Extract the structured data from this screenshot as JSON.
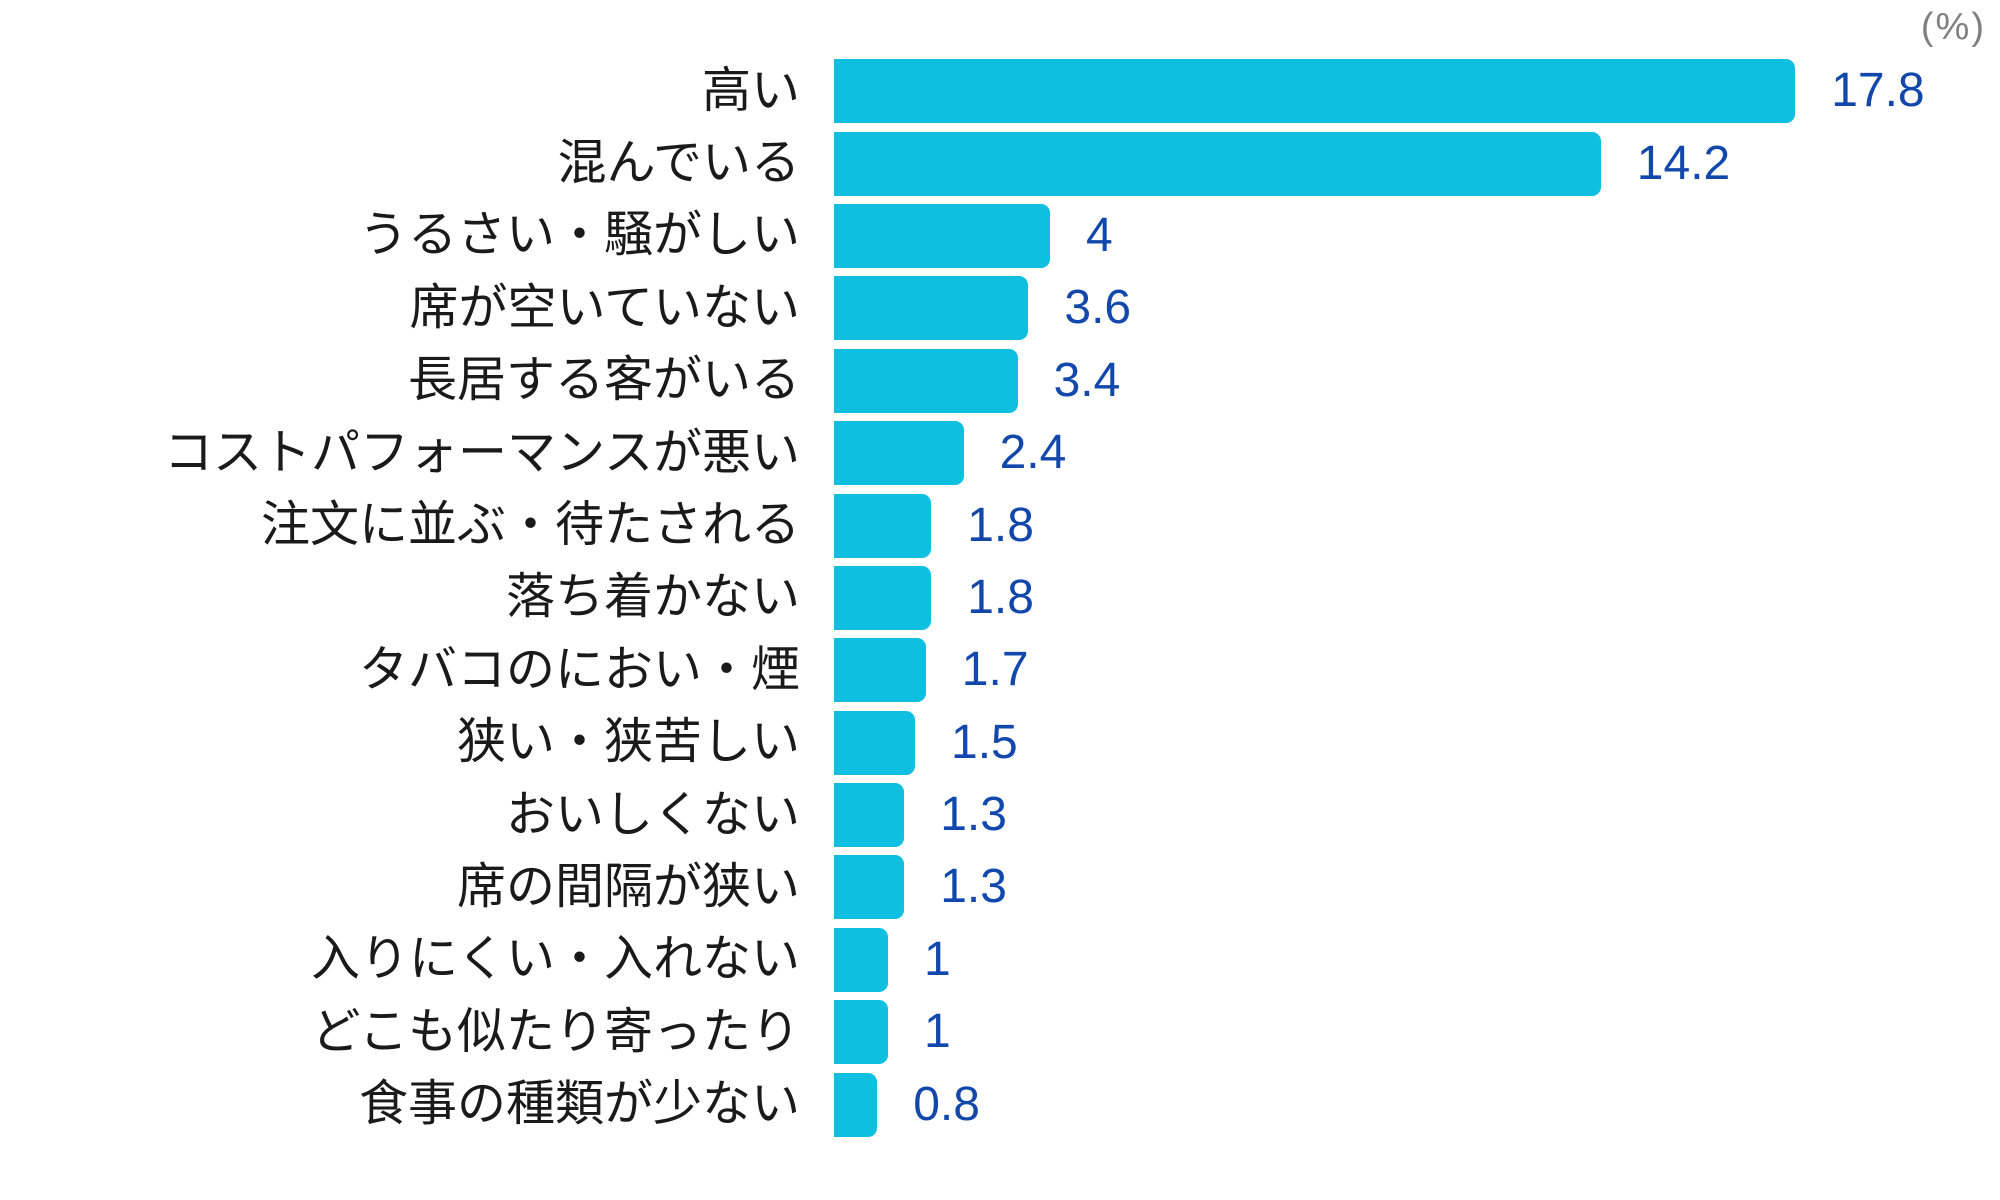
{
  "chart_data": {
    "type": "bar",
    "orientation": "horizontal",
    "title": "",
    "unit_label": "(%)",
    "xlabel": "",
    "ylabel": "",
    "xlim": [
      0,
      20
    ],
    "grid": false,
    "legend": false,
    "bar_color": "#0fbfdf",
    "value_label_color": "#1247ab",
    "category_label_color": "#1a1a1a",
    "unit_label_color": "#808080",
    "categories": [
      "高い",
      "混んでいる",
      "うるさい・騒がしい",
      "席が空いていない",
      "長居する客がいる",
      "コストパフォーマンスが悪い",
      "注文に並ぶ・待たされる",
      "落ち着かない",
      "タバコのにおい・煙",
      "狭い・狭苦しい",
      "おいしくない",
      "席の間隔が狭い",
      "入りにくい・入れない",
      "どこも似たり寄ったり",
      "食事の種類が少ない"
    ],
    "values": [
      17.8,
      14.2,
      4,
      3.6,
      3.4,
      2.4,
      1.8,
      1.8,
      1.7,
      1.5,
      1.3,
      1.3,
      1,
      1,
      0.8
    ],
    "value_labels": [
      "17.8",
      "14.2",
      "4",
      "3.6",
      "3.4",
      "2.4",
      "1.8",
      "1.8",
      "1.7",
      "1.5",
      "1.3",
      "1.3",
      "1",
      "1",
      "0.8"
    ]
  }
}
